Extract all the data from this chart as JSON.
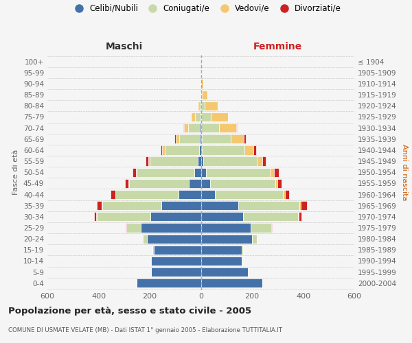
{
  "age_groups": [
    "100+",
    "95-99",
    "90-94",
    "85-89",
    "80-84",
    "75-79",
    "70-74",
    "65-69",
    "60-64",
    "55-59",
    "50-54",
    "45-49",
    "40-44",
    "35-39",
    "30-34",
    "25-29",
    "20-24",
    "15-19",
    "10-14",
    "5-9",
    "0-4"
  ],
  "birth_years": [
    "≤ 1904",
    "1905-1909",
    "1910-1914",
    "1915-1919",
    "1920-1924",
    "1925-1929",
    "1930-1934",
    "1935-1939",
    "1940-1944",
    "1945-1949",
    "1950-1954",
    "1955-1959",
    "1960-1964",
    "1965-1969",
    "1970-1974",
    "1975-1979",
    "1980-1984",
    "1985-1989",
    "1990-1994",
    "1995-1999",
    "2000-2004"
  ],
  "maschi_celibi": [
    0,
    0,
    0,
    1,
    1,
    2,
    3,
    4,
    6,
    11,
    26,
    46,
    88,
    155,
    196,
    235,
    210,
    185,
    195,
    195,
    250
  ],
  "maschi_coniugati": [
    0,
    0,
    2,
    3,
    8,
    22,
    46,
    80,
    135,
    190,
    225,
    235,
    245,
    230,
    212,
    55,
    15,
    3,
    1,
    0,
    0
  ],
  "maschi_vedovi": [
    0,
    0,
    0,
    1,
    5,
    15,
    18,
    15,
    10,
    5,
    3,
    2,
    2,
    2,
    1,
    1,
    0,
    0,
    0,
    0,
    0
  ],
  "maschi_divorziati": [
    0,
    0,
    0,
    0,
    0,
    0,
    1,
    5,
    5,
    10,
    12,
    14,
    18,
    20,
    8,
    3,
    1,
    0,
    0,
    0,
    0
  ],
  "femmine_nubili": [
    0,
    0,
    0,
    0,
    0,
    0,
    2,
    3,
    5,
    10,
    20,
    35,
    55,
    145,
    165,
    195,
    200,
    160,
    160,
    185,
    240
  ],
  "femmine_coniugate": [
    0,
    0,
    2,
    5,
    15,
    40,
    70,
    115,
    165,
    210,
    250,
    255,
    265,
    240,
    215,
    80,
    20,
    5,
    1,
    0,
    0
  ],
  "femmine_vedove": [
    0,
    2,
    8,
    20,
    50,
    65,
    65,
    50,
    35,
    20,
    15,
    10,
    8,
    5,
    3,
    1,
    1,
    0,
    0,
    0,
    0
  ],
  "femmine_divorziate": [
    0,
    0,
    0,
    0,
    0,
    0,
    5,
    8,
    10,
    15,
    20,
    15,
    18,
    25,
    10,
    3,
    1,
    0,
    0,
    0,
    0
  ],
  "color_celibi": "#4472a8",
  "color_coniugati": "#c8d9a8",
  "color_vedovi": "#f5c870",
  "color_divorziati": "#cc2222",
  "color_maschi_label": "#333333",
  "color_femmine_label": "#cc2222",
  "color_anni_label": "#cc5500",
  "color_text": "#666666",
  "color_bg": "#f5f5f5",
  "color_grid": "#cccccc",
  "xlim": 600,
  "xticks": [
    -600,
    -400,
    -200,
    0,
    200,
    400,
    600
  ],
  "title": "Popolazione per età, sesso e stato civile - 2005",
  "subtitle": "COMUNE DI USMATE VELATE (MB) - Dati ISTAT 1° gennaio 2005 - Elaborazione TUTTITALIA.IT",
  "label_maschi": "Maschi",
  "label_femmine": "Femmine",
  "label_fasce": "Fasce di età",
  "label_anni": "Anni di nascita",
  "legend_labels": [
    "Celibi/Nubili",
    "Coniugati/e",
    "Vedovi/e",
    "Divorziati/e"
  ]
}
